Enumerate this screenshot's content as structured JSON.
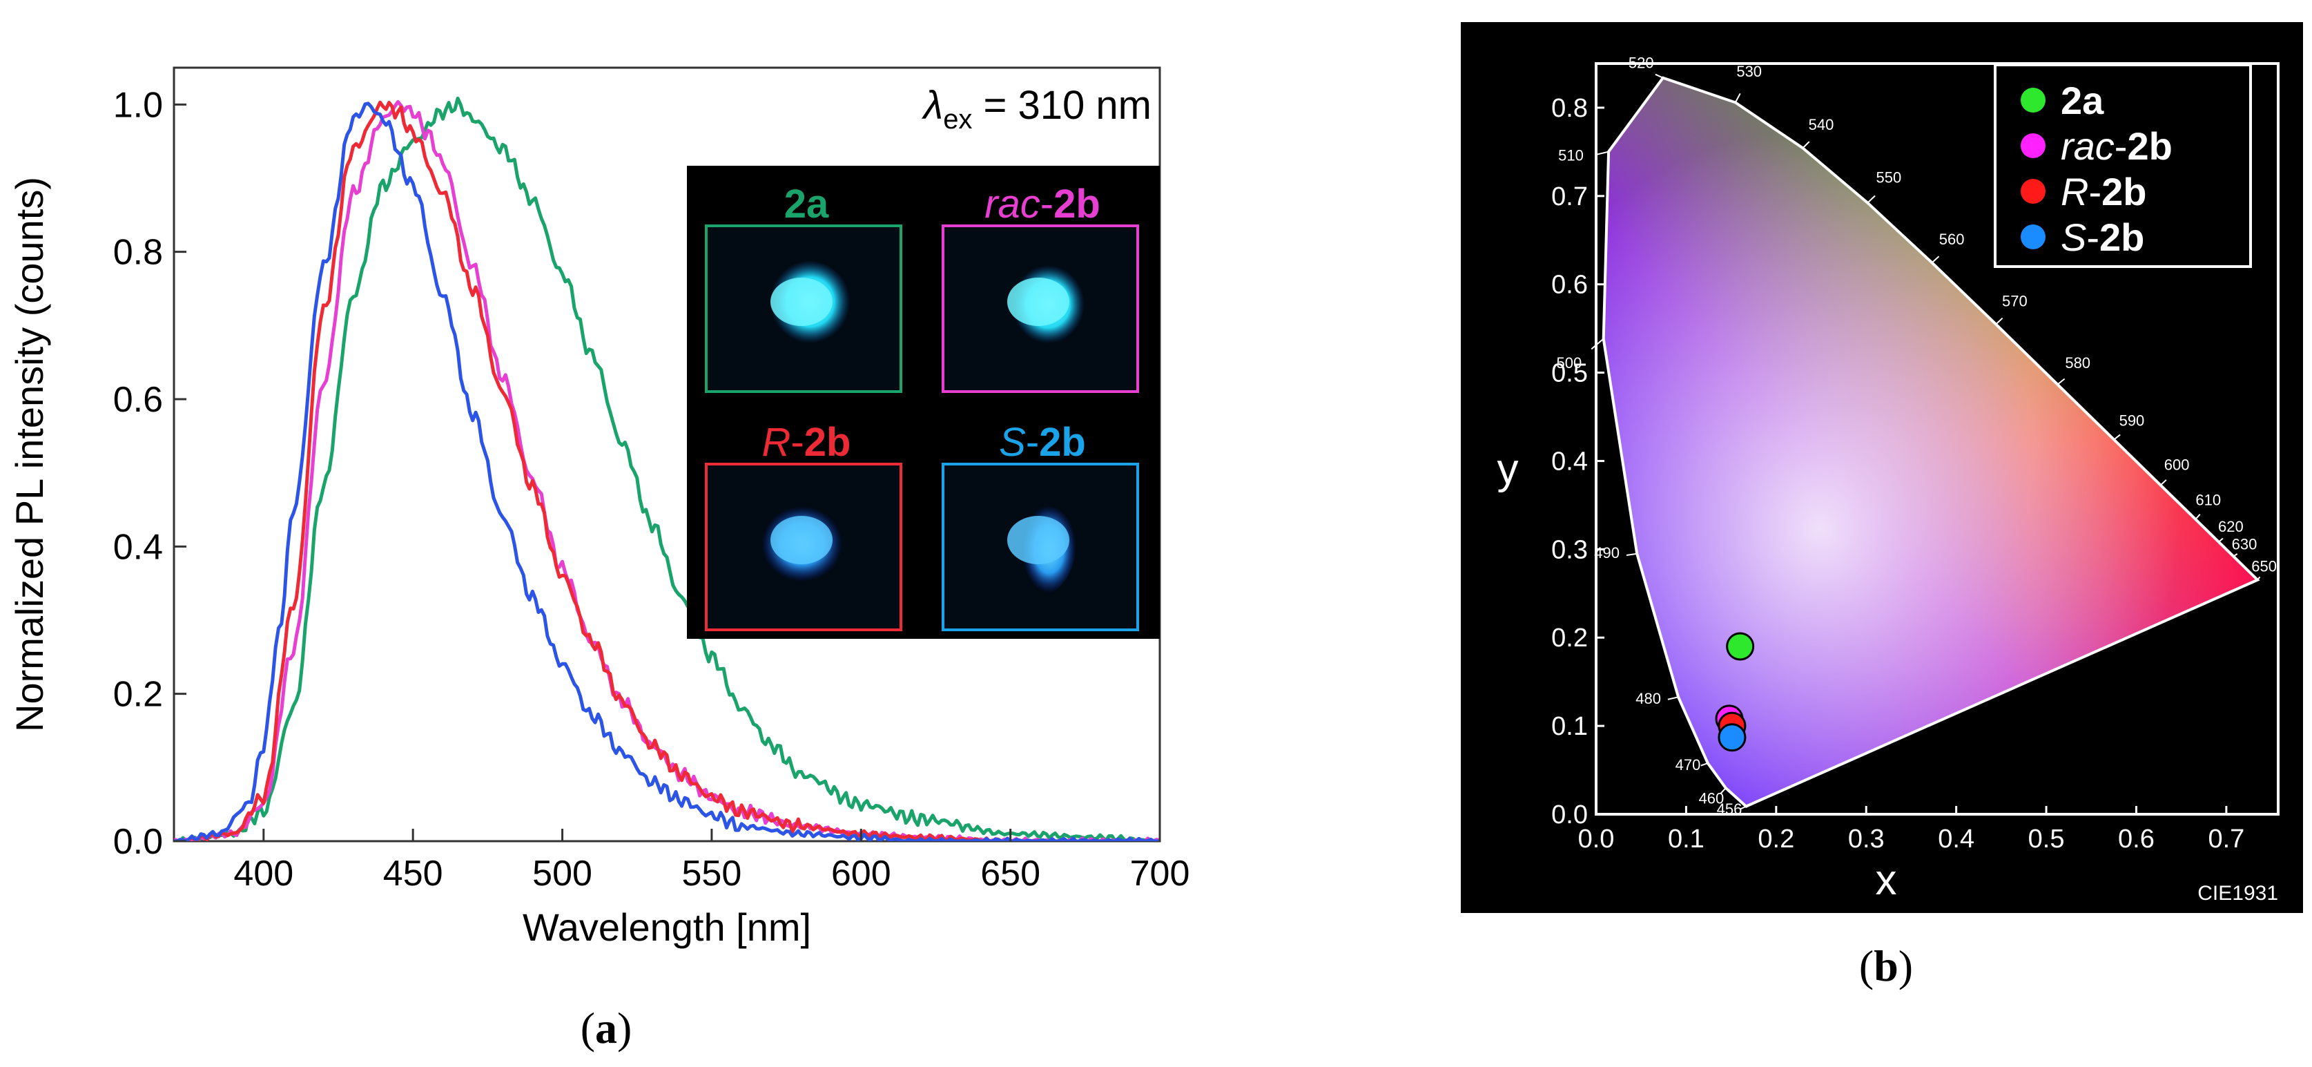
{
  "chart_data": [
    {
      "id": "a",
      "type": "line",
      "panel_label": "a",
      "xlabel": "Wavelength [nm]",
      "ylabel": "Normalized PL intensity (counts)",
      "xlim": [
        370,
        700
      ],
      "ylim": [
        0,
        1.05
      ],
      "xticks": [
        400,
        450,
        500,
        550,
        600,
        650,
        700
      ],
      "yticks": [
        0.0,
        0.2,
        0.4,
        0.6,
        0.8,
        1.0
      ],
      "annotation": {
        "symbol": "λ",
        "sub": "ex",
        "text": " = 310 nm"
      },
      "series": [
        {
          "name": "2a",
          "color": "#1aa36a",
          "x": [
            370,
            390,
            400,
            410,
            420,
            430,
            440,
            450,
            460,
            465,
            470,
            480,
            490,
            500,
            510,
            520,
            530,
            540,
            550,
            560,
            570,
            580,
            600,
            620,
            650,
            680,
            700
          ],
          "y": [
            0,
            0.01,
            0.04,
            0.18,
            0.48,
            0.74,
            0.89,
            0.95,
            0.99,
            1.0,
            0.98,
            0.94,
            0.87,
            0.77,
            0.66,
            0.54,
            0.43,
            0.33,
            0.25,
            0.18,
            0.13,
            0.09,
            0.05,
            0.03,
            0.01,
            0.005,
            0
          ]
        },
        {
          "name": "rac-2b",
          "color": "#e83fd3",
          "x": [
            370,
            390,
            400,
            410,
            420,
            430,
            440,
            445,
            450,
            455,
            460,
            470,
            480,
            490,
            500,
            510,
            520,
            530,
            540,
            550,
            560,
            580,
            600,
            620,
            650,
            700
          ],
          "y": [
            0,
            0.01,
            0.05,
            0.26,
            0.62,
            0.88,
            0.98,
            1.0,
            0.99,
            0.96,
            0.92,
            0.78,
            0.63,
            0.49,
            0.37,
            0.27,
            0.19,
            0.13,
            0.09,
            0.06,
            0.04,
            0.02,
            0.01,
            0.005,
            0,
            0
          ]
        },
        {
          "name": "R-2b",
          "color": "#ee2a36",
          "x": [
            370,
            390,
            400,
            410,
            420,
            430,
            440,
            445,
            450,
            460,
            470,
            480,
            490,
            500,
            510,
            520,
            530,
            540,
            550,
            560,
            580,
            600,
            620,
            650,
            700
          ],
          "y": [
            0,
            0.01,
            0.06,
            0.32,
            0.72,
            0.94,
            1.0,
            0.99,
            0.96,
            0.88,
            0.75,
            0.61,
            0.48,
            0.36,
            0.27,
            0.19,
            0.13,
            0.09,
            0.06,
            0.04,
            0.02,
            0.01,
            0.005,
            0,
            0
          ]
        },
        {
          "name": "S-2b",
          "color": "#2c55e8",
          "x": [
            370,
            385,
            395,
            400,
            405,
            410,
            420,
            430,
            435,
            440,
            450,
            460,
            470,
            480,
            490,
            500,
            510,
            520,
            530,
            540,
            550,
            560,
            580,
            600,
            620,
            650,
            700
          ],
          "y": [
            0,
            0.01,
            0.05,
            0.13,
            0.28,
            0.45,
            0.78,
            0.98,
            1.0,
            0.98,
            0.89,
            0.74,
            0.58,
            0.44,
            0.33,
            0.24,
            0.17,
            0.12,
            0.08,
            0.055,
            0.035,
            0.02,
            0.01,
            0.005,
            0,
            0,
            0
          ]
        }
      ],
      "inset": {
        "tiles": [
          {
            "label": "2a",
            "label_prefix": "",
            "label_main": "2a",
            "color": "#1aa36a"
          },
          {
            "label": "rac-2b",
            "label_prefix": "rac-",
            "label_main": "2b",
            "color": "#e83fd3"
          },
          {
            "label": "R-2b",
            "label_prefix": "R-",
            "label_main": "2b",
            "color": "#ee2a36"
          },
          {
            "label": "S-2b",
            "label_prefix": "S-",
            "label_main": "2b",
            "color": "#1aa3e8"
          }
        ]
      }
    },
    {
      "id": "b",
      "type": "scatter",
      "panel_label": "b",
      "xlabel": "x",
      "ylabel": "y",
      "xlim": [
        0,
        0.73
      ],
      "ylim": [
        0,
        0.85
      ],
      "xticks": [
        0.0,
        0.1,
        0.2,
        0.3,
        0.4,
        0.5,
        0.6,
        0.7
      ],
      "yticks": [
        0.0,
        0.1,
        0.2,
        0.3,
        0.4,
        0.5,
        0.6,
        0.7,
        0.8
      ],
      "footer": "CIE1931",
      "locus_labels": [
        "456",
        "460",
        "470",
        "480",
        "490",
        "500",
        "510",
        "520",
        "530",
        "540",
        "550",
        "560",
        "570",
        "580",
        "590",
        "600",
        "610",
        "620",
        "630",
        "650"
      ],
      "points": [
        {
          "name": "2a",
          "label_prefix": "",
          "label_main": "2a",
          "x": 0.16,
          "y": 0.19,
          "color": "#2ee82e"
        },
        {
          "name": "rac-2b",
          "label_prefix": "rac-",
          "label_main": "2b",
          "x": 0.148,
          "y": 0.108,
          "color": "#ff22ff"
        },
        {
          "name": "R-2b",
          "label_prefix": "R-",
          "label_main": "2b",
          "x": 0.151,
          "y": 0.1,
          "color": "#ff1a1a"
        },
        {
          "name": "S-2b",
          "label_prefix": "S-",
          "label_main": "2b",
          "x": 0.151,
          "y": 0.087,
          "color": "#1a8cff"
        }
      ]
    }
  ]
}
